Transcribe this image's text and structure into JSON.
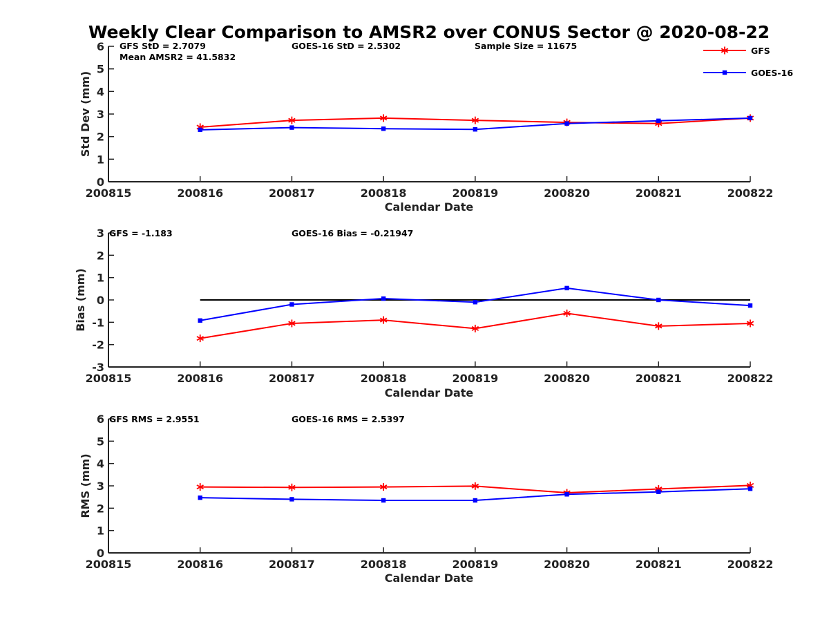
{
  "figure_title": "Weekly Clear Comparison to AMSR2 over CONUS Sector @ 2020-08-22",
  "legend": {
    "placement": "top-right",
    "items": [
      {
        "label": "GFS",
        "color": "#ff0000",
        "marker": "asterisk"
      },
      {
        "label": "GOES-16",
        "color": "#0000ff",
        "marker": "square"
      }
    ]
  },
  "chart_data": [
    {
      "type": "line",
      "ylabel": "Std Dev (mm)",
      "xlabel": "Calendar Date",
      "xlim": [
        200815,
        200822
      ],
      "ylim": [
        0,
        6
      ],
      "x_tick_labels": [
        "200815",
        "200816",
        "200817",
        "200818",
        "200819",
        "200820",
        "200821",
        "200822"
      ],
      "y_tick_labels": [
        "0",
        "1",
        "2",
        "3",
        "4",
        "5",
        "6"
      ],
      "annotations": [
        "GFS StD = 2.7079",
        "Mean AMSR2 = 41.5832",
        "GOES-16 StD = 2.5302",
        "Sample Size = 11675"
      ],
      "x": [
        200816,
        200817,
        200818,
        200819,
        200820,
        200821,
        200822
      ],
      "series": [
        {
          "name": "GFS",
          "color": "#ff0000",
          "values": [
            2.42,
            2.72,
            2.82,
            2.72,
            2.63,
            2.58,
            2.82
          ]
        },
        {
          "name": "GOES-16",
          "color": "#0000ff",
          "values": [
            2.3,
            2.4,
            2.35,
            2.32,
            2.58,
            2.7,
            2.82
          ]
        }
      ]
    },
    {
      "type": "line",
      "ylabel": "Bias (mm)",
      "xlabel": "Calendar Date",
      "xlim": [
        200815,
        200822
      ],
      "ylim": [
        -3,
        3
      ],
      "x_tick_labels": [
        "200815",
        "200816",
        "200817",
        "200818",
        "200819",
        "200820",
        "200821",
        "200822"
      ],
      "y_tick_labels": [
        "-3",
        "-2",
        "-1",
        "0",
        "1",
        "2",
        "3"
      ],
      "annotations": [
        "GFS = -1.183",
        "GOES-16 Bias  = -0.21947"
      ],
      "reference_line": {
        "y": 0,
        "color": "#000000"
      },
      "x": [
        200816,
        200817,
        200818,
        200819,
        200820,
        200821,
        200822
      ],
      "series": [
        {
          "name": "GFS",
          "color": "#ff0000",
          "values": [
            -1.72,
            -1.05,
            -0.9,
            -1.28,
            -0.6,
            -1.17,
            -1.05
          ]
        },
        {
          "name": "GOES-16",
          "color": "#0000ff",
          "values": [
            -0.92,
            -0.2,
            0.06,
            -0.1,
            0.53,
            0.0,
            -0.25
          ]
        }
      ]
    },
    {
      "type": "line",
      "ylabel": "RMS (mm)",
      "xlabel": "Calendar Date",
      "xlim": [
        200815,
        200822
      ],
      "ylim": [
        0,
        6
      ],
      "x_tick_labels": [
        "200815",
        "200816",
        "200817",
        "200818",
        "200819",
        "200820",
        "200821",
        "200822"
      ],
      "y_tick_labels": [
        "0",
        "1",
        "2",
        "3",
        "4",
        "5",
        "6"
      ],
      "annotations": [
        "GFS RMS = 2.9551",
        "GOES-16 RMS = 2.5397"
      ],
      "x": [
        200816,
        200817,
        200818,
        200819,
        200820,
        200821,
        200822
      ],
      "series": [
        {
          "name": "GFS",
          "color": "#ff0000",
          "values": [
            2.95,
            2.93,
            2.95,
            2.99,
            2.69,
            2.86,
            3.02
          ]
        },
        {
          "name": "GOES-16",
          "color": "#0000ff",
          "values": [
            2.47,
            2.4,
            2.35,
            2.35,
            2.62,
            2.73,
            2.87
          ]
        }
      ]
    }
  ]
}
